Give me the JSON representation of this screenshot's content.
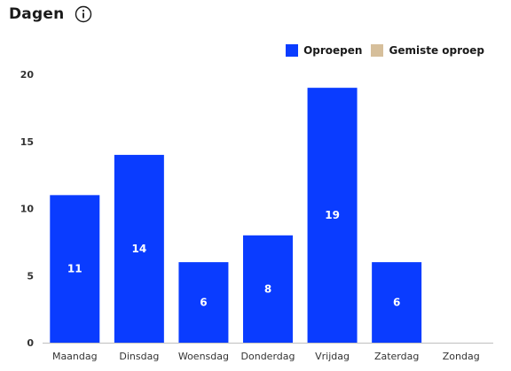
{
  "header": {
    "title": "Dagen",
    "info_icon": "info-icon"
  },
  "colors": {
    "primary": "#0a3cff",
    "secondary": "#d6bf9b",
    "axis": "#bfbfbf"
  },
  "chart_data": {
    "type": "bar",
    "title": "Dagen",
    "categories": [
      "Maandag",
      "Dinsdag",
      "Woensdag",
      "Donderdag",
      "Vrijdag",
      "Zaterdag",
      "Zondag"
    ],
    "series": [
      {
        "name": "Oproepen",
        "values": [
          11,
          14,
          6,
          8,
          19,
          6,
          0
        ]
      },
      {
        "name": "Gemiste oproep",
        "values": [
          0,
          0,
          0,
          0,
          0,
          0,
          0
        ]
      }
    ],
    "ylim": [
      0,
      20
    ],
    "yticks": [
      0,
      5,
      10,
      15,
      20
    ],
    "xlabel": "",
    "ylabel": "",
    "legend": "top-right",
    "grid": false
  }
}
